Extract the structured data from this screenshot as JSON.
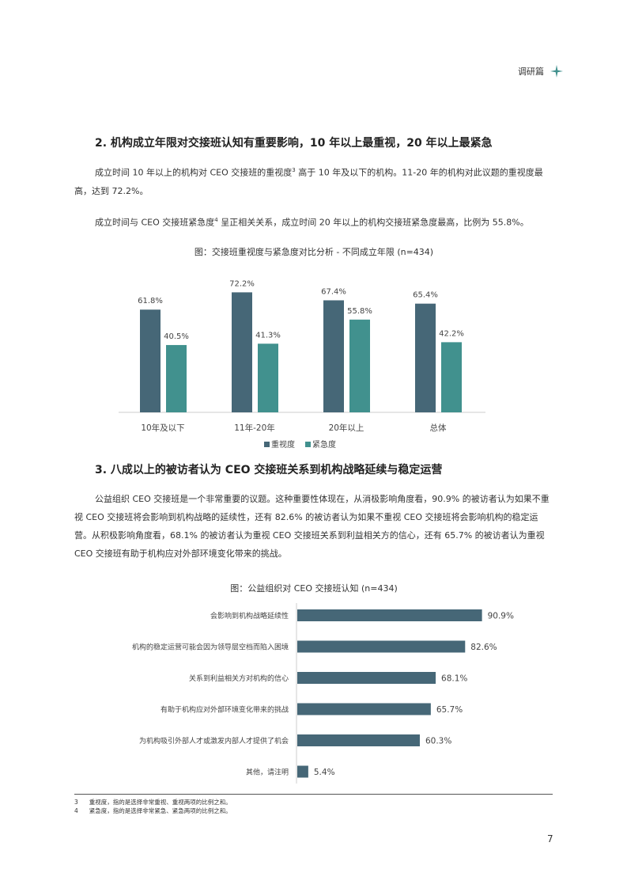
{
  "header": {
    "section_label": "调研篇"
  },
  "section2": {
    "title": "2. 机构成立年限对交接班认知有重要影响，10 年以上最重视，20 年以上最紧急",
    "para1_a": "成立时间 10 年以上的机构对 CEO 交接班的重视度",
    "para1_sup": "3",
    "para1_b": " 高于 10 年及以下的机构。11-20 年的机构对此议题的重视度最高，达到 72.2%。",
    "para2_a": "成立时间与 CEO 交接班紧急度",
    "para2_sup": "4",
    "para2_b": " 呈正相关关系，成立时间 20 年以上的机构交接班紧急度最高，比例为 55.8%。"
  },
  "figure1": {
    "title": "图：交接班重视度与紧急度对比分析 - 不同成立年限 (n=434)",
    "chart_data": {
      "type": "bar",
      "categories": [
        "10年及以下",
        "11年-20年",
        "20年以上",
        "总体"
      ],
      "series": [
        {
          "name": "重视度",
          "values": [
            61.8,
            72.2,
            67.4,
            65.4
          ],
          "labels": [
            "61.8%",
            "72.2%",
            "67.4%",
            "65.4%"
          ],
          "color": "#466777"
        },
        {
          "name": "紧急度",
          "values": [
            40.5,
            41.3,
            55.8,
            42.2
          ],
          "labels": [
            "40.5%",
            "41.3%",
            "55.8%",
            "42.2%"
          ],
          "color": "#41918e"
        }
      ],
      "ylim": [
        0,
        80
      ],
      "legend": "bottom",
      "grid": false
    }
  },
  "section3": {
    "title": "3. 八成以上的被访者认为 CEO 交接班关系到机构战略延续与稳定运营",
    "para": "公益组织 CEO 交接班是一个非常重要的议题。这种重要性体现在，从消极影响角度看，90.9% 的被访者认为如果不重视 CEO 交接班将会影响到机构战略的延续性，还有 82.6% 的被访者认为如果不重视 CEO 交接班将会影响机构的稳定运营。从积极影响角度看，68.1% 的被访者认为重视 CEO 交接班关系到利益相关方的信心，还有 65.7% 的被访者认为重视 CEO 交接班有助于机构应对外部环境变化带来的挑战。"
  },
  "figure2": {
    "title": "图：公益组织对 CEO 交接班认知 (n=434)",
    "chart_data": {
      "type": "bar",
      "orientation": "horizontal",
      "categories": [
        "会影响到机构战略延续性",
        "机构的稳定运营可能会因为领导层空档而陷入困境",
        "关系到利益相关方对机构的信心",
        "有助于机构应对外部环境变化带来的挑战",
        "为机构吸引外部人才或激发内部人才提供了机会",
        "其他，请注明"
      ],
      "values": [
        90.9,
        82.6,
        68.1,
        65.7,
        60.3,
        5.4
      ],
      "labels": [
        "90.9%",
        "82.6%",
        "68.1%",
        "65.7%",
        "60.3%",
        "5.4%"
      ],
      "xlim": [
        0,
        100
      ],
      "color": "#466777",
      "grid": false
    }
  },
  "footnotes": [
    {
      "num": "3",
      "text": "重视度，指的是选择非常重视、重视两项的比例之和。"
    },
    {
      "num": "4",
      "text": "紧急度，指的是选择非常紧急、紧急两项的比例之和。"
    }
  ],
  "page_number": "7",
  "colors": {
    "accent_dark": "#466777",
    "accent_teal": "#41918e"
  }
}
